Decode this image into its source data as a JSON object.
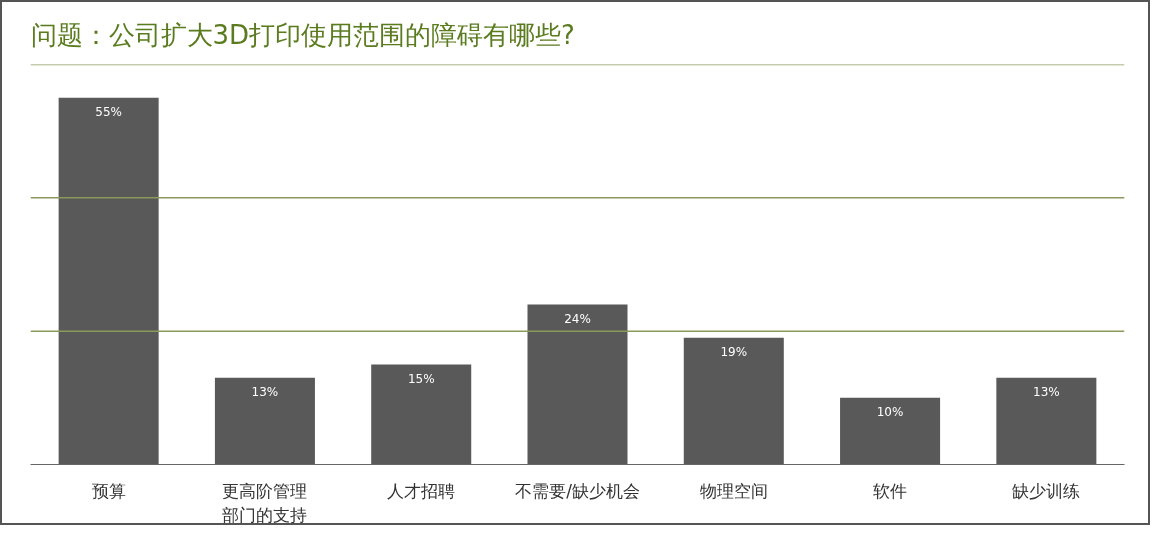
{
  "chart_data": {
    "type": "bar",
    "title": "问题：公司扩大3D打印使用范围的障碍有哪些?",
    "categories": [
      "预算",
      "更高阶管理部门的支持",
      "人才招聘",
      "不需要/缺少机会",
      "物理空间",
      "软件",
      "缺少训练"
    ],
    "values": [
      55,
      13,
      15,
      24,
      19,
      10,
      13
    ],
    "value_labels": [
      "55%",
      "13%",
      "15%",
      "24%",
      "19%",
      "10%",
      "13%"
    ],
    "color": "#595959",
    "ylim": [
      0,
      60
    ],
    "ref_lines": [
      {
        "axis": "y",
        "value": 20,
        "color": "#8a9a5b"
      },
      {
        "axis": "y",
        "value": 40,
        "color": "#8a9a5b"
      },
      {
        "axis": "y",
        "value": 60,
        "color": "#8a9a5b"
      }
    ],
    "tick_labels": "x"
  }
}
